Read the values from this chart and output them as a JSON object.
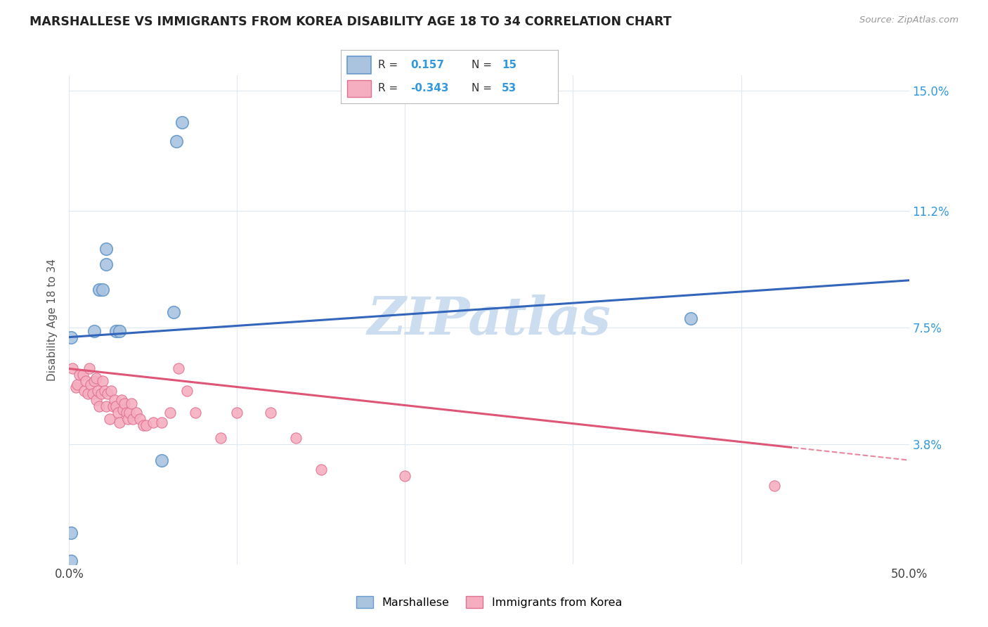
{
  "title": "MARSHALLESE VS IMMIGRANTS FROM KOREA DISABILITY AGE 18 TO 34 CORRELATION CHART",
  "source": "Source: ZipAtlas.com",
  "ylabel": "Disability Age 18 to 34",
  "xlim": [
    0.0,
    0.5
  ],
  "ylim": [
    0.0,
    0.155
  ],
  "xticks": [
    0.0,
    0.1,
    0.2,
    0.3,
    0.4,
    0.5
  ],
  "xtick_labels": [
    "0.0%",
    "",
    "",
    "",
    "",
    "50.0%"
  ],
  "right_yticks": [
    0.038,
    0.075,
    0.112,
    0.15
  ],
  "right_ytick_labels": [
    "3.8%",
    "7.5%",
    "11.2%",
    "15.0%"
  ],
  "blue_color": "#aac4e0",
  "blue_edge": "#6699cc",
  "pink_color": "#f5aec0",
  "pink_edge": "#e07090",
  "blue_line_color": "#3366bb",
  "pink_line_color": "#dd5577",
  "watermark": "ZIPatlas",
  "watermark_color": "#ccddf0",
  "legend_label_blue": "Marshallese",
  "legend_label_pink": "Immigrants from Korea",
  "grid_color": "#dde8f0",
  "background_color": "#ffffff",
  "blue_intercept": 0.072,
  "blue_slope": 0.036,
  "pink_intercept": 0.062,
  "pink_slope": -0.058,
  "blue_x": [
    0.001,
    0.001,
    0.015,
    0.018,
    0.02,
    0.022,
    0.022,
    0.028,
    0.03,
    0.055,
    0.062,
    0.064,
    0.067,
    0.37,
    0.001
  ],
  "blue_y": [
    0.01,
    0.072,
    0.074,
    0.087,
    0.087,
    0.1,
    0.095,
    0.074,
    0.074,
    0.033,
    0.08,
    0.134,
    0.14,
    0.078,
    0.001
  ],
  "pink_x": [
    0.002,
    0.004,
    0.005,
    0.006,
    0.008,
    0.009,
    0.01,
    0.011,
    0.012,
    0.013,
    0.014,
    0.015,
    0.016,
    0.016,
    0.017,
    0.018,
    0.019,
    0.02,
    0.021,
    0.022,
    0.023,
    0.024,
    0.025,
    0.026,
    0.027,
    0.028,
    0.029,
    0.03,
    0.031,
    0.032,
    0.033,
    0.034,
    0.035,
    0.036,
    0.037,
    0.038,
    0.04,
    0.042,
    0.044,
    0.046,
    0.05,
    0.055,
    0.06,
    0.065,
    0.07,
    0.075,
    0.09,
    0.1,
    0.12,
    0.135,
    0.15,
    0.2,
    0.42
  ],
  "pink_y": [
    0.062,
    0.056,
    0.057,
    0.06,
    0.06,
    0.055,
    0.058,
    0.054,
    0.062,
    0.057,
    0.054,
    0.058,
    0.059,
    0.052,
    0.055,
    0.05,
    0.054,
    0.058,
    0.055,
    0.05,
    0.054,
    0.046,
    0.055,
    0.05,
    0.052,
    0.05,
    0.048,
    0.045,
    0.052,
    0.049,
    0.051,
    0.048,
    0.046,
    0.048,
    0.051,
    0.046,
    0.048,
    0.046,
    0.044,
    0.044,
    0.045,
    0.045,
    0.048,
    0.062,
    0.055,
    0.048,
    0.04,
    0.048,
    0.048,
    0.04,
    0.03,
    0.028,
    0.025
  ]
}
